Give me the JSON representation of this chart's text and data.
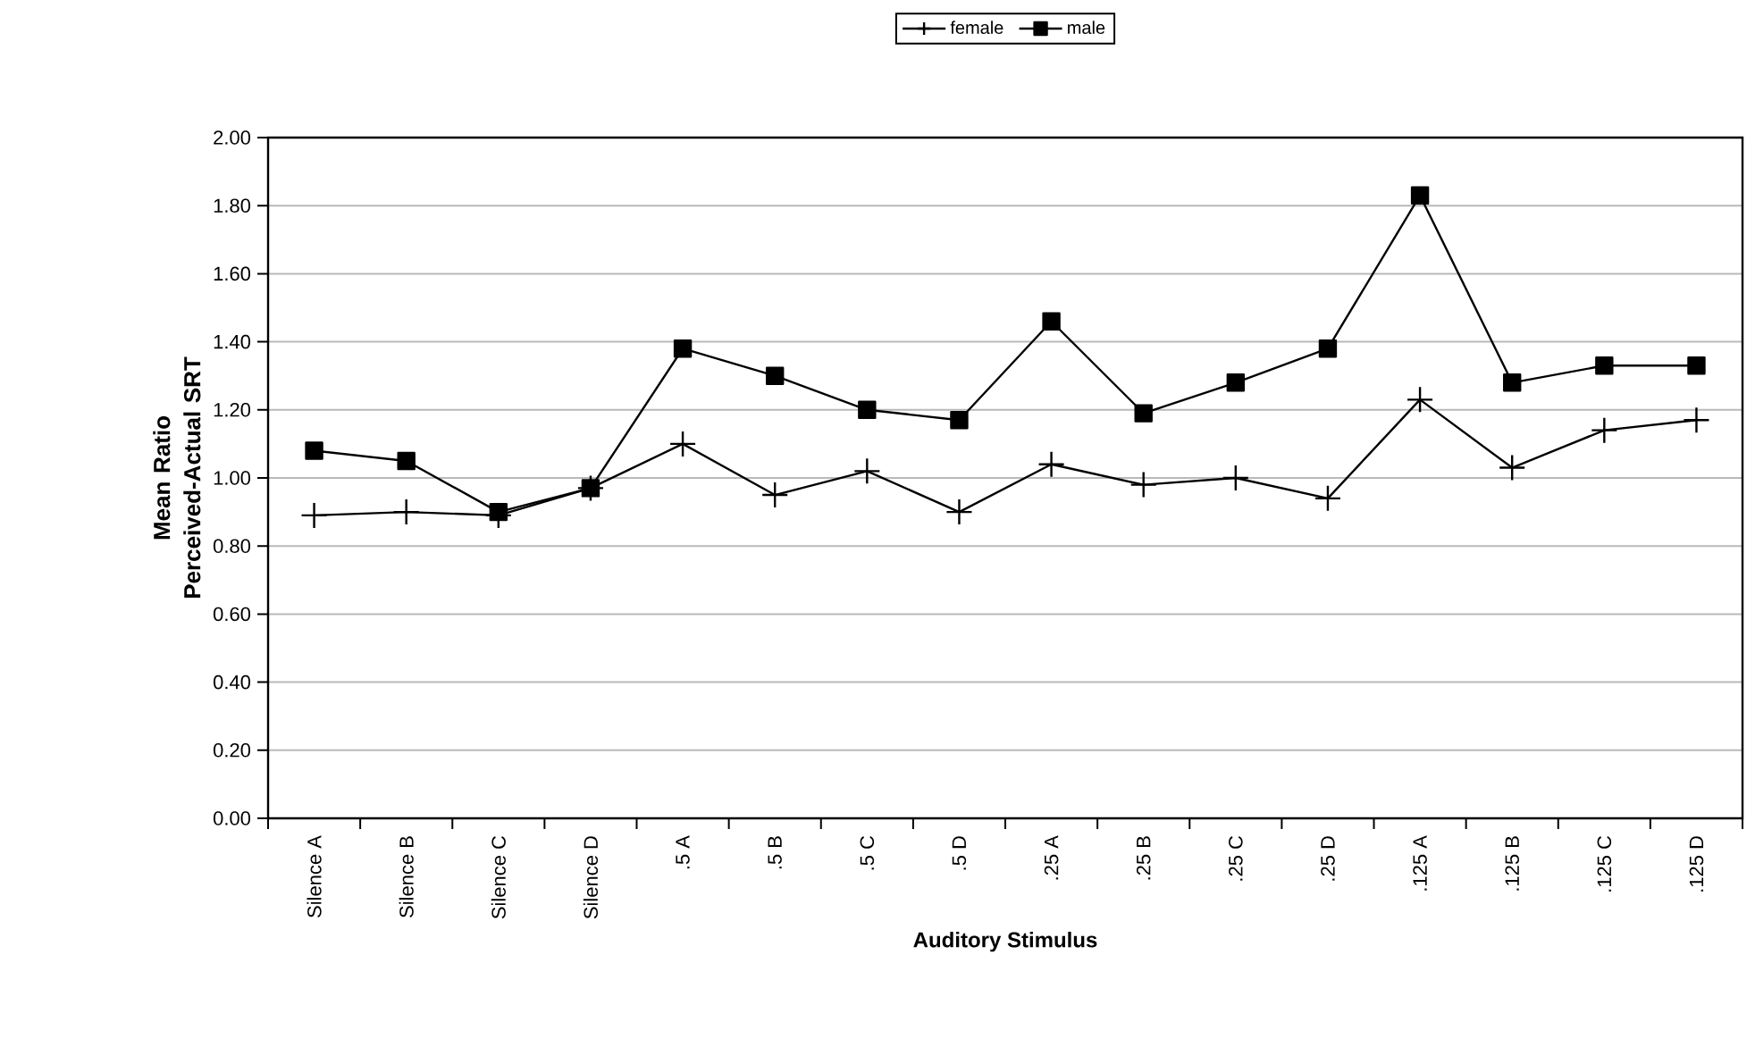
{
  "chart_data": {
    "type": "line",
    "xlabel": "Auditory Stimulus",
    "ylabel": "Mean Ratio Perceived-Actual SRT",
    "categories": [
      "Silence A",
      "Silence B",
      "Silence C",
      "Silence D",
      ".5 A",
      ".5 B",
      ".5 C",
      ".5 D",
      ".25 A",
      ".25 B",
      ".25 C",
      ".25 D",
      ".125 A",
      ".125 B",
      ".125 C",
      ".125 D"
    ],
    "series": [
      {
        "name": "female",
        "color": "#000000",
        "marker": "cross",
        "values": [
          0.89,
          0.9,
          0.89,
          0.97,
          1.1,
          0.95,
          1.02,
          0.9,
          1.04,
          0.98,
          1.0,
          0.94,
          1.23,
          1.03,
          1.14,
          1.17
        ]
      },
      {
        "name": "male",
        "color": "#000000",
        "marker": "square",
        "values": [
          1.08,
          1.05,
          0.9,
          0.97,
          1.38,
          1.3,
          1.2,
          1.17,
          1.46,
          1.19,
          1.28,
          1.38,
          1.83,
          1.28,
          1.33,
          1.33
        ]
      }
    ],
    "ylim": [
      0,
      2
    ],
    "yticks": [
      {
        "value": 0,
        "label": "0.00"
      },
      {
        "value": 0.2,
        "label": "0.20"
      },
      {
        "value": 0.4,
        "label": "0.40"
      },
      {
        "value": 0.6,
        "label": "0.60"
      },
      {
        "value": 0.8,
        "label": "0.80"
      },
      {
        "value": 1.0,
        "label": "1.00"
      },
      {
        "value": 1.2,
        "label": "1.20"
      },
      {
        "value": 1.4,
        "label": "1.40"
      },
      {
        "value": 1.6,
        "label": "1.60"
      },
      {
        "value": 1.8,
        "label": "1.80"
      },
      {
        "value": 2.0,
        "label": "2.00"
      }
    ],
    "grid": "y",
    "legend": "top",
    "line_style": "solid"
  }
}
